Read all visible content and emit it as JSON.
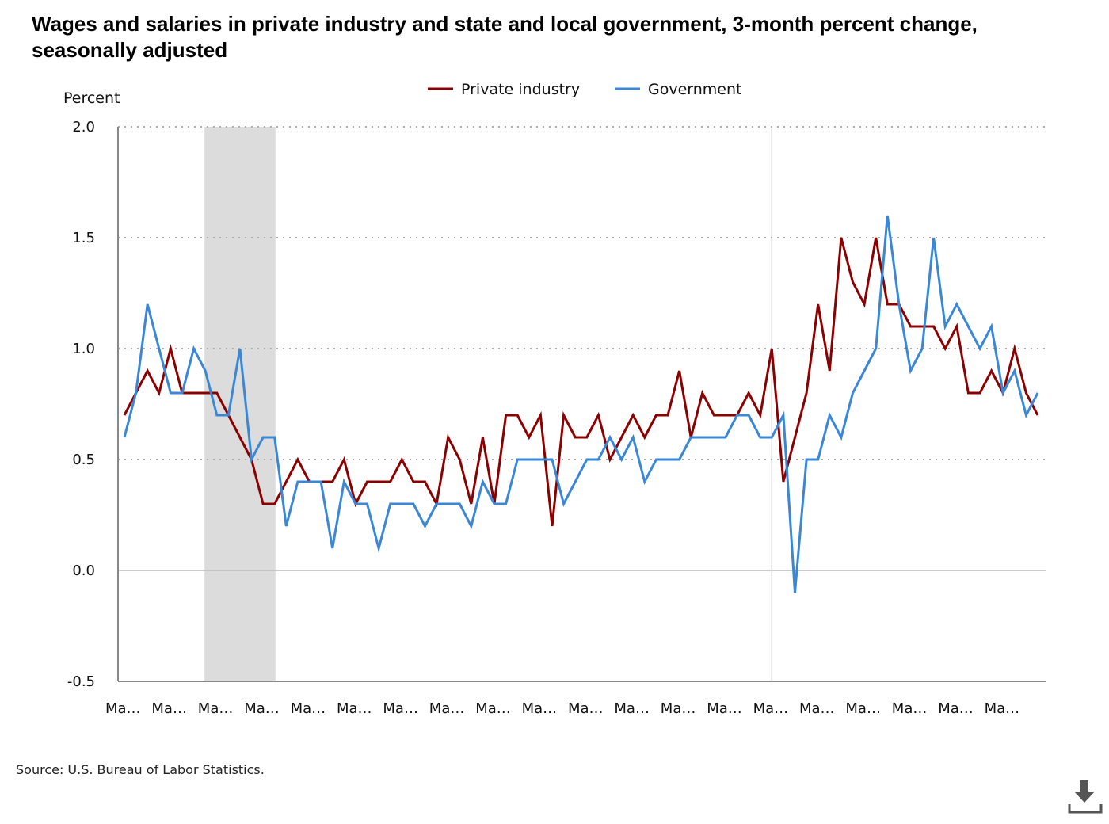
{
  "chart_data": {
    "type": "line",
    "title": "Wages and salaries in private industry and state and local government, 3-month percent change, seasonally adjusted",
    "ylabel": "Percent",
    "xlabel": "",
    "ylim": [
      -0.5,
      2.0
    ],
    "yticks": [
      "2.0",
      "1.5",
      "1.0",
      "0.5",
      "0.0",
      "-0.5"
    ],
    "ytick_values": [
      2.0,
      1.5,
      1.0,
      0.5,
      0.0,
      -0.5
    ],
    "xtick_labels": [
      "Ma…",
      "Ma…",
      "Ma…",
      "Ma…",
      "Ma…",
      "Ma…",
      "Ma…",
      "Ma…",
      "Ma…",
      "Ma…",
      "Ma…",
      "Ma…",
      "Ma…",
      "Ma…",
      "Ma…",
      "Ma…",
      "Ma…",
      "Ma…",
      "Ma…",
      "Ma…"
    ],
    "grid": "horizontal-dotted",
    "legend": "top-center",
    "recession_shading": {
      "from_index": 7,
      "to_index": 13
    },
    "vertical_marker_index": 56,
    "series": [
      {
        "name": "Private industry",
        "color": "#8b0000",
        "values": [
          0.7,
          0.8,
          0.9,
          0.8,
          1.0,
          0.8,
          0.8,
          0.8,
          0.8,
          0.7,
          0.6,
          0.5,
          0.3,
          0.3,
          0.4,
          0.5,
          0.4,
          0.4,
          0.4,
          0.5,
          0.3,
          0.4,
          0.4,
          0.4,
          0.5,
          0.4,
          0.4,
          0.3,
          0.6,
          0.5,
          0.3,
          0.6,
          0.3,
          0.7,
          0.7,
          0.6,
          0.7,
          0.2,
          0.7,
          0.6,
          0.6,
          0.7,
          0.5,
          0.6,
          0.7,
          0.6,
          0.7,
          0.7,
          0.9,
          0.6,
          0.8,
          0.7,
          0.7,
          0.7,
          0.8,
          0.7,
          1.0,
          0.4,
          0.6,
          0.8,
          1.2,
          0.9,
          1.5,
          1.3,
          1.2,
          1.5,
          1.2,
          1.2,
          1.1,
          1.1,
          1.1,
          1.0,
          1.1,
          0.8,
          0.8,
          0.9,
          0.8,
          1.0,
          0.8,
          0.7
        ]
      },
      {
        "name": "Government",
        "color": "#3a87d6",
        "values": [
          0.6,
          0.8,
          1.2,
          1.0,
          0.8,
          0.8,
          1.0,
          0.9,
          0.7,
          0.7,
          1.0,
          0.5,
          0.6,
          0.6,
          0.2,
          0.4,
          0.4,
          0.4,
          0.1,
          0.4,
          0.3,
          0.3,
          0.1,
          0.3,
          0.3,
          0.3,
          0.2,
          0.3,
          0.3,
          0.3,
          0.2,
          0.4,
          0.3,
          0.3,
          0.5,
          0.5,
          0.5,
          0.5,
          0.3,
          0.4,
          0.5,
          0.5,
          0.6,
          0.5,
          0.6,
          0.4,
          0.5,
          0.5,
          0.5,
          0.6,
          0.6,
          0.6,
          0.6,
          0.7,
          0.7,
          0.6,
          0.6,
          0.7,
          -0.1,
          0.5,
          0.5,
          0.7,
          0.6,
          0.8,
          0.9,
          1.0,
          1.6,
          1.2,
          0.9,
          1.0,
          1.5,
          1.1,
          1.2,
          1.1,
          1.0,
          1.1,
          0.8,
          0.9,
          0.7,
          0.8
        ]
      }
    ]
  },
  "source": "Source: U.S. Bureau of Labor Statistics."
}
